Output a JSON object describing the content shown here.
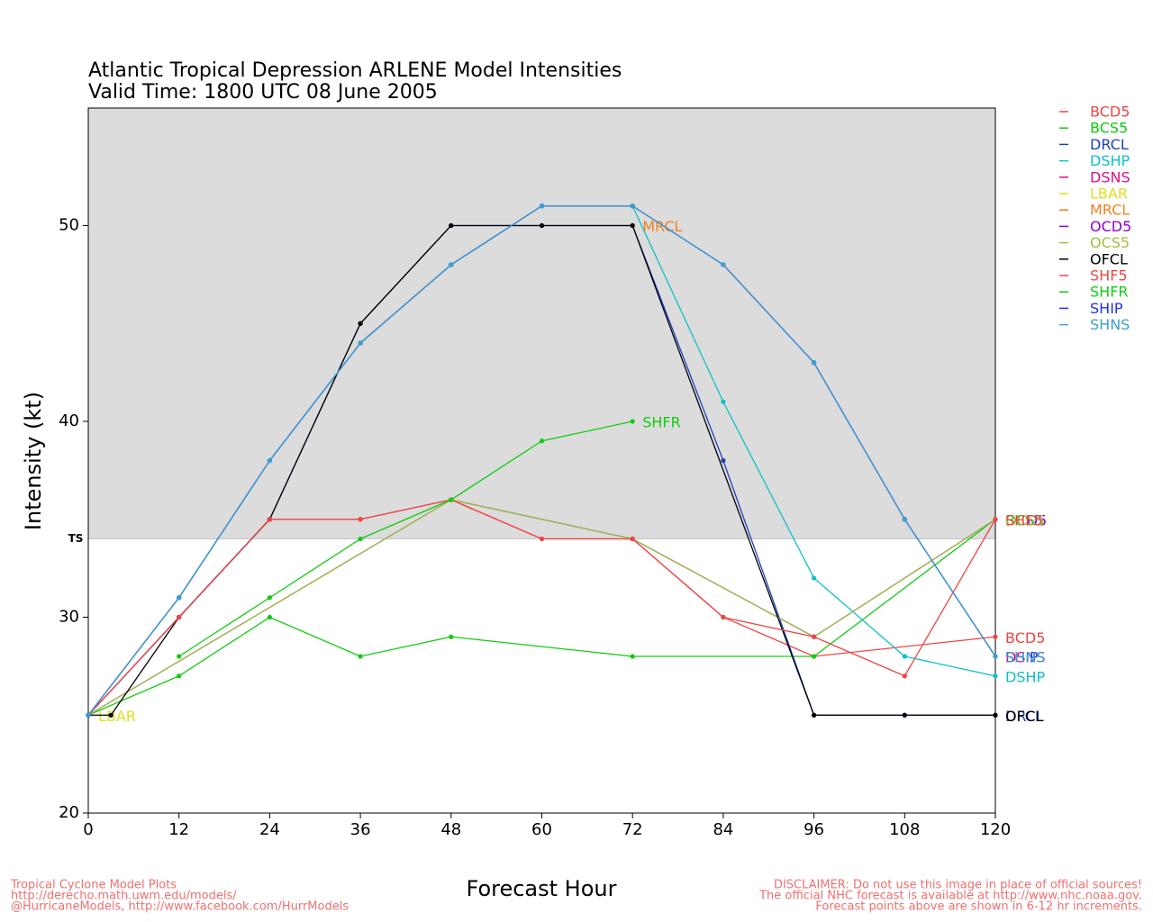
{
  "chart_data": {
    "type": "line",
    "title": "Atlantic Tropical Depression ARLENE Model Intensities",
    "subtitle": "Valid Time: 1800 UTC 08 June 2005",
    "x_label": "Forecast Hour",
    "y_label": "Intensity (kt)",
    "xlim": [
      0,
      120
    ],
    "ylim": [
      20,
      56
    ],
    "xticks": [
      0,
      12,
      24,
      36,
      48,
      60,
      72,
      84,
      96,
      108,
      120
    ],
    "yticks": [
      20,
      30,
      40,
      50
    ],
    "threshold": {
      "value": 34,
      "label": "TS",
      "shade": "above",
      "color": "#dcdcdc"
    },
    "series": [
      {
        "name": "BCD5",
        "color": "#f04545",
        "x": [
          0,
          12,
          24,
          36,
          48,
          60,
          72,
          84,
          96,
          120
        ],
        "values": [
          25,
          30,
          35,
          35,
          36,
          34,
          34,
          30,
          28,
          29
        ]
      },
      {
        "name": "BCS5",
        "color": "#10cc10",
        "x": [
          0,
          12,
          24,
          36,
          48,
          72,
          96,
          120
        ],
        "values": [
          25,
          27,
          30,
          28,
          29,
          28,
          28,
          35
        ]
      },
      {
        "name": "DRCL",
        "color": "#2040c0",
        "x": [
          0,
          12,
          24,
          36,
          48,
          60,
          72,
          84,
          96,
          108,
          120
        ],
        "values": [
          25,
          30,
          35,
          45,
          50,
          50,
          50,
          38,
          25,
          25,
          25
        ]
      },
      {
        "name": "DSHP",
        "color": "#10c0c8",
        "x": [
          0,
          12,
          24,
          36,
          48,
          60,
          72,
          84,
          96,
          108,
          120
        ],
        "values": [
          25,
          31,
          38,
          44,
          48,
          51,
          51,
          41,
          32,
          28,
          27
        ]
      },
      {
        "name": "DSNS",
        "color": "#e0108a",
        "x": [
          0,
          12,
          24,
          36,
          48,
          60,
          72,
          84,
          96,
          108,
          120
        ],
        "values": [
          25,
          31,
          38,
          44,
          48,
          51,
          51,
          48,
          43,
          35,
          28
        ]
      },
      {
        "name": "LBAR",
        "color": "#e0e020",
        "x": [
          0
        ],
        "values": [
          25
        ]
      },
      {
        "name": "MRCL",
        "color": "#f08020",
        "x": [
          72
        ],
        "values": [
          50
        ]
      },
      {
        "name": "OCD5",
        "color": "#9000d0",
        "x": [
          0,
          48,
          72,
          96,
          120
        ],
        "values": [
          25,
          36,
          34,
          29,
          35
        ]
      },
      {
        "name": "OCS5",
        "color": "#a0c040",
        "x": [
          0,
          48,
          72,
          96,
          120
        ],
        "values": [
          25,
          36,
          34,
          29,
          35
        ]
      },
      {
        "name": "OFCL",
        "color": "#000000",
        "x": [
          0,
          3,
          12,
          24,
          36,
          48,
          60,
          72,
          96,
          108,
          120
        ],
        "values": [
          25,
          25,
          30,
          35,
          45,
          50,
          50,
          50,
          25,
          25,
          25
        ]
      },
      {
        "name": "SHF5",
        "color": "#f04545",
        "x": [
          0,
          12,
          24,
          36,
          48,
          60,
          72,
          84,
          96,
          108,
          120
        ],
        "values": [
          25,
          30,
          35,
          35,
          36,
          34,
          34,
          30,
          29,
          27,
          35
        ]
      },
      {
        "name": "SHFR",
        "color": "#10cc10",
        "x": [
          12,
          24,
          36,
          48,
          60,
          72
        ],
        "values": [
          28,
          31,
          34,
          36,
          39,
          40
        ]
      },
      {
        "name": "SHIP",
        "color": "#2030f0",
        "x": [
          0,
          12,
          24,
          36,
          48,
          60,
          72,
          84,
          96,
          108,
          120
        ],
        "values": [
          25,
          31,
          38,
          44,
          48,
          51,
          51,
          48,
          43,
          35,
          28
        ]
      },
      {
        "name": "SHNS",
        "color": "#3aa0d0",
        "x": [
          0,
          12,
          24,
          36,
          48,
          60,
          72,
          84,
          96,
          108,
          120
        ],
        "values": [
          25,
          31,
          38,
          44,
          48,
          51,
          51,
          48,
          43,
          35,
          28
        ]
      }
    ],
    "footer_left": [
      "Tropical Cyclone Model Plots",
      "http://derecho.math.uwm.edu/models/",
      "@HurricaneModels, http://www.facebook.com/HurrModels"
    ],
    "footer_right": [
      "DISCLAIMER: Do not use this image in place of official sources!",
      "The official NHC forecast is available at http://www.nhc.noaa.gov.",
      "Forecast points above are shown in 6-12 hr increments."
    ]
  }
}
